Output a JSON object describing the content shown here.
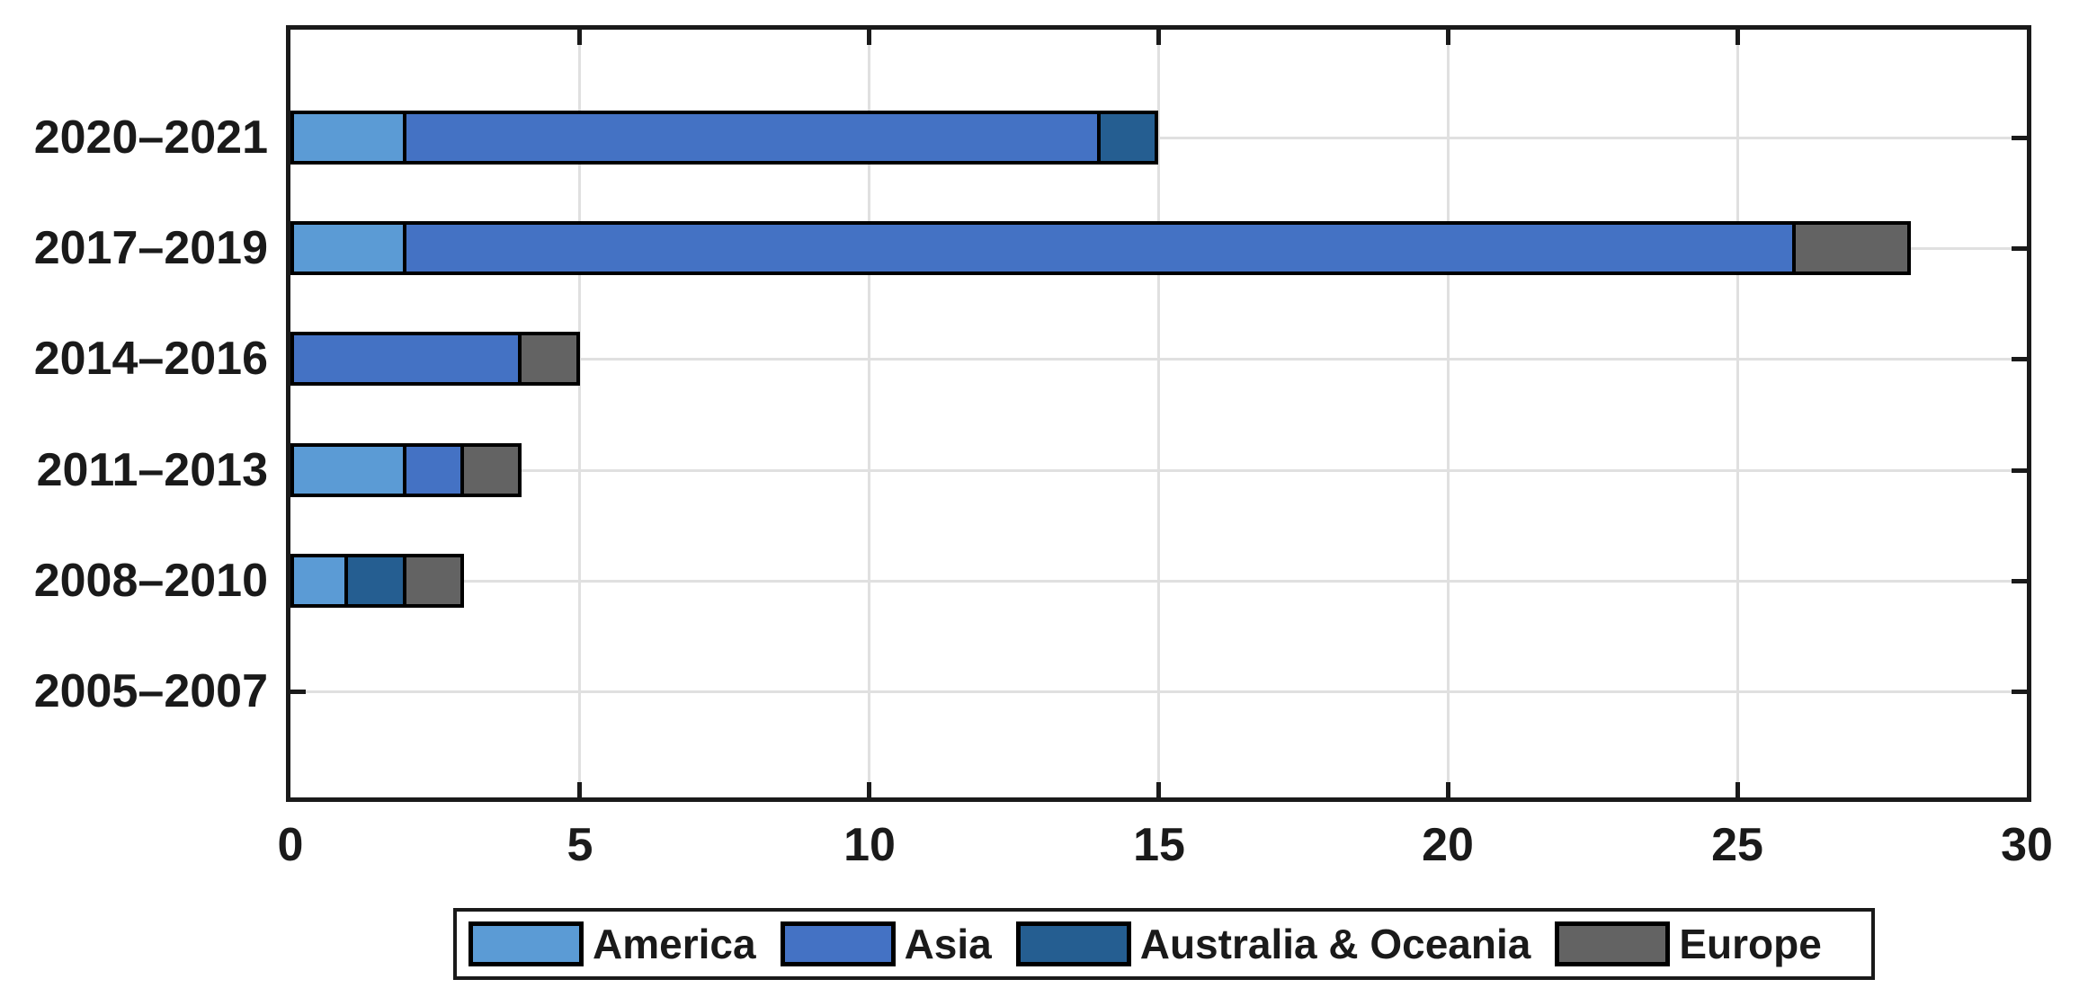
{
  "chart_data": {
    "type": "bar",
    "orientation": "horizontal",
    "stacked": true,
    "title": "",
    "xlabel": "",
    "ylabel": "",
    "categories": [
      "2020–2021",
      "2017–2019",
      "2014–2016",
      "2011–2013",
      "2008–2010",
      "2005–2007"
    ],
    "series": [
      {
        "name": "America",
        "color": "#5B9BD5",
        "values": [
          2,
          2,
          0,
          2,
          1,
          0
        ]
      },
      {
        "name": "Asia",
        "color": "#4472C4",
        "values": [
          12,
          24,
          4,
          1,
          0,
          0
        ]
      },
      {
        "name": "Australia & Oceania",
        "color": "#255E91",
        "values": [
          1,
          0,
          0,
          0,
          1,
          0
        ]
      },
      {
        "name": "Europe",
        "color": "#636363",
        "values": [
          0,
          2,
          1,
          1,
          1,
          0
        ]
      }
    ],
    "totals": [
      15,
      28,
      5,
      4,
      3,
      0
    ],
    "xlim": [
      0,
      30
    ],
    "x_ticks": [
      0,
      5,
      10,
      15,
      20,
      25,
      30
    ],
    "x_tick_labels": [
      "0",
      "5",
      "10",
      "15",
      "20",
      "25",
      "30"
    ],
    "grid": "on",
    "legend_position": "bottom-outside"
  },
  "colors": {
    "axis": "#1A1A1A",
    "gridline": "#E0E0E0",
    "segment_border": "#000000",
    "background": "#FFFFFF",
    "text": "#1A1A1A"
  }
}
